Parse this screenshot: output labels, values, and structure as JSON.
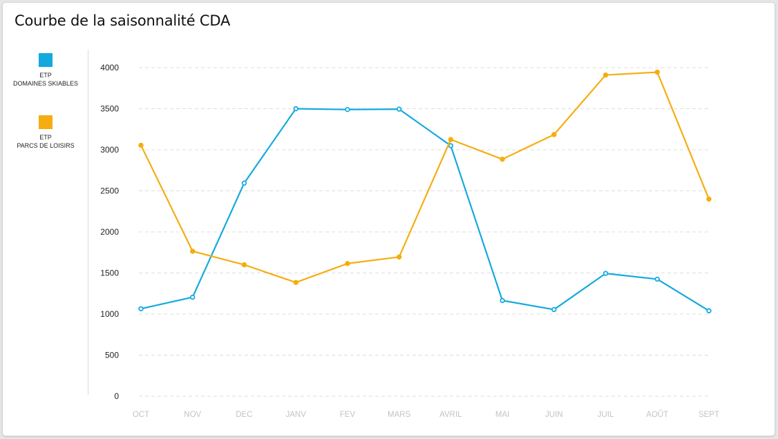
{
  "chart_data": {
    "type": "line",
    "title": "Courbe de la saisonnalité CDA",
    "categories": [
      "OCT",
      "NOV",
      "DEC",
      "JANV",
      "FEV",
      "MARS",
      "AVRIL",
      "MAI",
      "JUIN",
      "JUIL",
      "AOÛT",
      "SEPT"
    ],
    "yticks": [
      0,
      500,
      1000,
      1500,
      2000,
      2500,
      3000,
      3500,
      4000
    ],
    "ylim": [
      0,
      4000
    ],
    "grid": true,
    "legend_position": "left",
    "series": [
      {
        "name_line1": "ETP",
        "name_line2": "DOMAINES SKIABLES",
        "color": "#13a9de",
        "marker": "hollow",
        "values": [
          1065,
          1205,
          2595,
          3500,
          3490,
          3495,
          3050,
          1165,
          1055,
          1495,
          1425,
          1040
        ]
      },
      {
        "name_line1": "ETP",
        "name_line2": "PARCS DE LOISIRS",
        "color": "#f5ad0f",
        "marker": "filled",
        "values": [
          3055,
          1765,
          1600,
          1385,
          1615,
          1695,
          3125,
          2885,
          3185,
          3910,
          3945,
          2400
        ]
      }
    ]
  }
}
